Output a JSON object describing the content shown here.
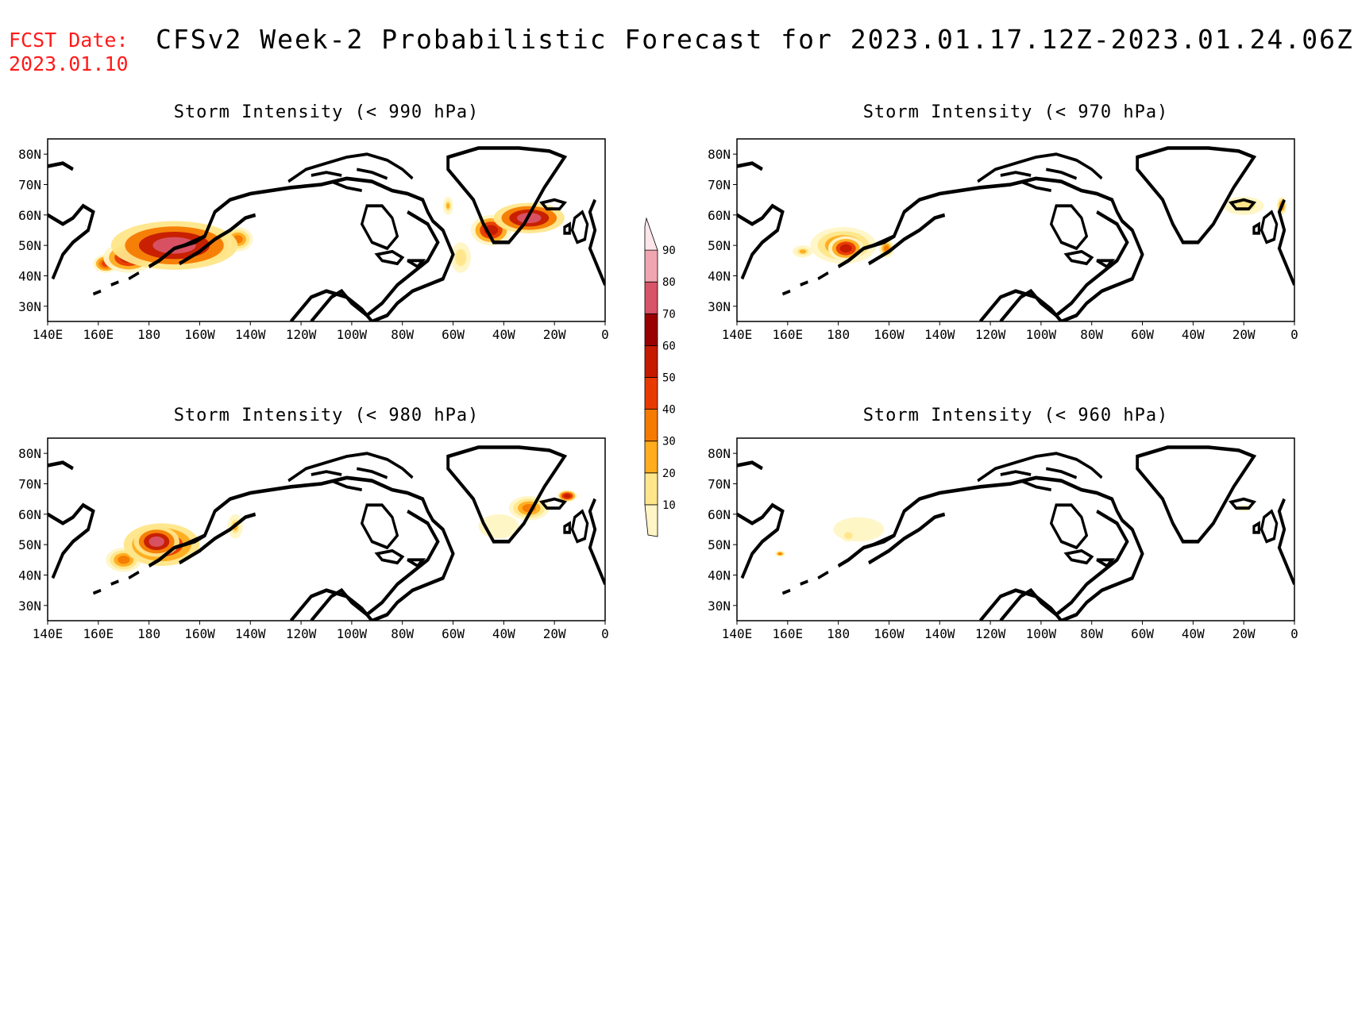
{
  "header": {
    "fcst_date_label": "FCST Date:",
    "fcst_date_value": "2023.01.10",
    "title": "CFSv2 Week-2 Probabilistic Forecast for 2023.01.17.12Z-2023.01.24.06Z"
  },
  "map_extent": {
    "lon_min": 140,
    "lon_max": 360,
    "lat_min": 25,
    "lat_max": 85
  },
  "axes": {
    "lon_ticks": [
      {
        "lon": 140,
        "label": "140E"
      },
      {
        "lon": 160,
        "label": "160E"
      },
      {
        "lon": 180,
        "label": "180"
      },
      {
        "lon": 200,
        "label": "160W"
      },
      {
        "lon": 220,
        "label": "140W"
      },
      {
        "lon": 240,
        "label": "120W"
      },
      {
        "lon": 260,
        "label": "100W"
      },
      {
        "lon": 280,
        "label": "80W"
      },
      {
        "lon": 300,
        "label": "60W"
      },
      {
        "lon": 320,
        "label": "40W"
      },
      {
        "lon": 340,
        "label": "20W"
      },
      {
        "lon": 360,
        "label": "0"
      }
    ],
    "lat_ticks": [
      {
        "lat": 80,
        "label": "80N"
      },
      {
        "lat": 70,
        "label": "70N"
      },
      {
        "lat": 60,
        "label": "60N"
      },
      {
        "lat": 50,
        "label": "50N"
      },
      {
        "lat": 40,
        "label": "40N"
      },
      {
        "lat": 30,
        "label": "30N"
      }
    ]
  },
  "colorbar": {
    "levels": [
      10,
      20,
      30,
      40,
      50,
      60,
      70,
      80,
      90
    ],
    "colors": [
      "#fff5c6",
      "#ffe68a",
      "#ffac1e",
      "#f57a00",
      "#e83a00",
      "#c51a00",
      "#9b0000",
      "#d85468",
      "#f0a6b0",
      "#fde6ea"
    ]
  },
  "panels": [
    {
      "id": "p990",
      "title": "Storm Intensity (< 990 hPa)",
      "blobs": [
        {
          "lon": 190,
          "lat": 50,
          "rx": 25,
          "ry": 8,
          "prob": 85
        },
        {
          "lon": 172,
          "lat": 46,
          "rx": 10,
          "ry": 5,
          "prob": 65
        },
        {
          "lon": 205,
          "lat": 50,
          "rx": 8,
          "ry": 6,
          "prob": 65
        },
        {
          "lon": 215,
          "lat": 52,
          "rx": 6,
          "ry": 4,
          "prob": 45
        },
        {
          "lon": 163,
          "lat": 44,
          "rx": 5,
          "ry": 3,
          "prob": 55
        },
        {
          "lon": 330,
          "lat": 59,
          "rx": 14,
          "ry": 5,
          "prob": 80
        },
        {
          "lon": 315,
          "lat": 55,
          "rx": 8,
          "ry": 5,
          "prob": 65
        },
        {
          "lon": 303,
          "lat": 46,
          "rx": 4,
          "ry": 5,
          "prob": 25
        },
        {
          "lon": 298,
          "lat": 63,
          "rx": 2,
          "ry": 3,
          "prob": 35
        }
      ]
    },
    {
      "id": "p970",
      "title": "Storm Intensity (< 970 hPa)",
      "blobs": [
        {
          "lon": 182,
          "lat": 50,
          "rx": 13,
          "ry": 6,
          "prob": 45
        },
        {
          "lon": 183,
          "lat": 49,
          "rx": 7,
          "ry": 4,
          "prob": 65
        },
        {
          "lon": 166,
          "lat": 48,
          "rx": 4,
          "ry": 2,
          "prob": 35
        },
        {
          "lon": 199,
          "lat": 49,
          "rx": 3,
          "ry": 3,
          "prob": 45
        },
        {
          "lon": 340,
          "lat": 63,
          "rx": 8,
          "ry": 3,
          "prob": 25
        },
        {
          "lon": 355,
          "lat": 63,
          "rx": 2,
          "ry": 3,
          "prob": 45
        }
      ]
    },
    {
      "id": "p980",
      "title": "Storm Intensity (< 980 hPa)",
      "blobs": [
        {
          "lon": 185,
          "lat": 50,
          "rx": 15,
          "ry": 7,
          "prob": 72
        },
        {
          "lon": 183,
          "lat": 51,
          "rx": 9,
          "ry": 5,
          "prob": 85
        },
        {
          "lon": 170,
          "lat": 45,
          "rx": 7,
          "ry": 4,
          "prob": 45
        },
        {
          "lon": 214,
          "lat": 56,
          "rx": 3,
          "ry": 4,
          "prob": 35
        },
        {
          "lon": 330,
          "lat": 62,
          "rx": 8,
          "ry": 4,
          "prob": 45
        },
        {
          "lon": 318,
          "lat": 56,
          "rx": 8,
          "ry": 4,
          "prob": 15
        },
        {
          "lon": 345,
          "lat": 66,
          "rx": 4,
          "ry": 2,
          "prob": 65
        }
      ]
    },
    {
      "id": "p960",
      "title": "Storm Intensity (< 960 hPa)",
      "blobs": [
        {
          "lon": 188,
          "lat": 55,
          "rx": 10,
          "ry": 4,
          "prob": 15
        },
        {
          "lon": 184,
          "lat": 53,
          "rx": 3,
          "ry": 2,
          "prob": 25
        },
        {
          "lon": 157,
          "lat": 47,
          "rx": 2,
          "ry": 1,
          "prob": 45
        },
        {
          "lon": 340,
          "lat": 62,
          "rx": 3,
          "ry": 1,
          "prob": 15
        }
      ]
    }
  ]
}
